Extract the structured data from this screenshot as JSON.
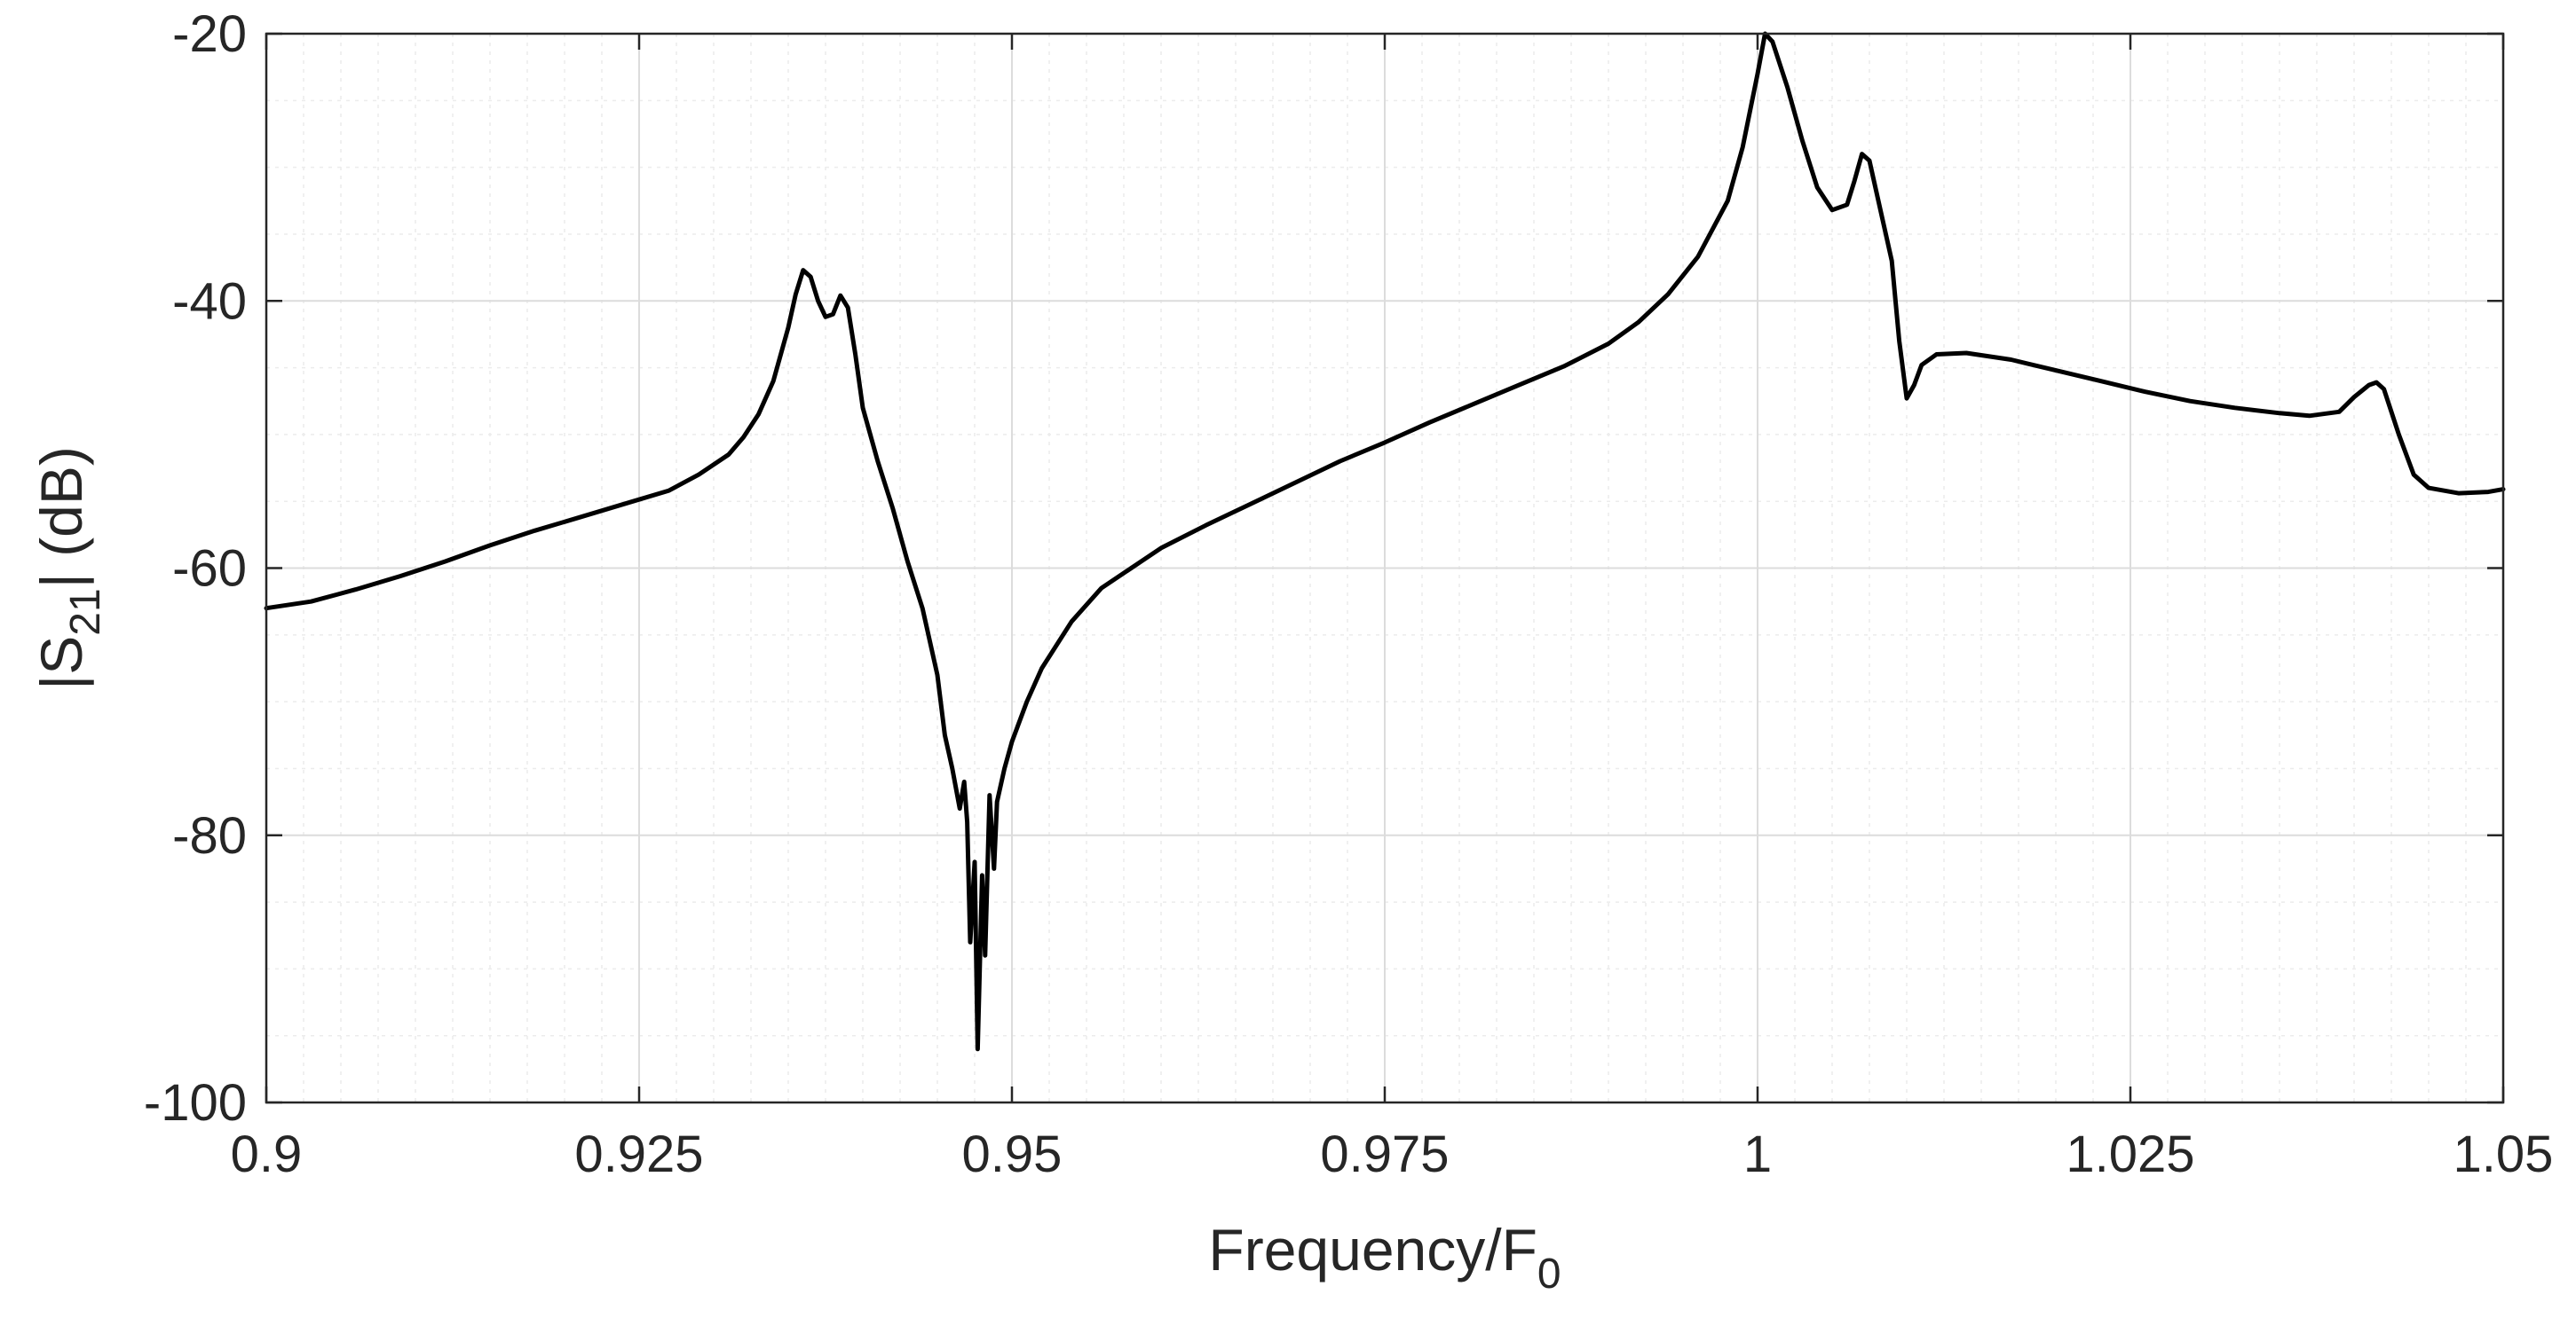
{
  "chart_data": {
    "type": "line",
    "title": "",
    "xlabel": {
      "main": "Frequency/F",
      "sub": "0"
    },
    "ylabel": {
      "prefix": "|S",
      "sub": "21",
      "suffix": "| (dB)"
    },
    "xlim": [
      0.9,
      1.05
    ],
    "ylim": [
      -100,
      -20
    ],
    "x_ticks": [
      0.9,
      0.925,
      0.95,
      0.975,
      1.0,
      1.025,
      1.05
    ],
    "x_tick_labels": [
      "0.9",
      "0.925",
      "0.95",
      "0.975",
      "1",
      "1.025",
      "1.05"
    ],
    "y_ticks": [
      -100,
      -80,
      -60,
      -40,
      -20
    ],
    "y_tick_labels": [
      "-100",
      "-80",
      "-60",
      "-40",
      "-20"
    ],
    "x_minor_step": 0.0025,
    "y_minor_step": 5,
    "grid": true,
    "minor_grid": true,
    "line_color": "#000000",
    "series": [
      {
        "points": [
          [
            0.9,
            -63.0
          ],
          [
            0.903,
            -62.5
          ],
          [
            0.906,
            -61.6
          ],
          [
            0.909,
            -60.6
          ],
          [
            0.912,
            -59.5
          ],
          [
            0.915,
            -58.3
          ],
          [
            0.918,
            -57.2
          ],
          [
            0.921,
            -56.2
          ],
          [
            0.924,
            -55.2
          ],
          [
            0.927,
            -54.2
          ],
          [
            0.929,
            -53.0
          ],
          [
            0.931,
            -51.5
          ],
          [
            0.932,
            -50.2
          ],
          [
            0.933,
            -48.5
          ],
          [
            0.934,
            -46.0
          ],
          [
            0.935,
            -42.0
          ],
          [
            0.9355,
            -39.5
          ],
          [
            0.936,
            -37.7
          ],
          [
            0.9365,
            -38.2
          ],
          [
            0.937,
            -40.0
          ],
          [
            0.9375,
            -41.2
          ],
          [
            0.938,
            -41.0
          ],
          [
            0.9385,
            -39.6
          ],
          [
            0.939,
            -40.5
          ],
          [
            0.9395,
            -44.0
          ],
          [
            0.94,
            -48.0
          ],
          [
            0.941,
            -52.0
          ],
          [
            0.942,
            -55.5
          ],
          [
            0.943,
            -59.5
          ],
          [
            0.944,
            -63.0
          ],
          [
            0.945,
            -68.0
          ],
          [
            0.9455,
            -72.5
          ],
          [
            0.946,
            -75.0
          ],
          [
            0.9465,
            -78.0
          ],
          [
            0.9468,
            -76.0
          ],
          [
            0.947,
            -79.0
          ],
          [
            0.9472,
            -88.0
          ],
          [
            0.9475,
            -82.0
          ],
          [
            0.9477,
            -96.0
          ],
          [
            0.948,
            -83.0
          ],
          [
            0.9482,
            -89.0
          ],
          [
            0.9485,
            -77.0
          ],
          [
            0.9488,
            -82.5
          ],
          [
            0.949,
            -77.5
          ],
          [
            0.9495,
            -75.0
          ],
          [
            0.95,
            -73.0
          ],
          [
            0.951,
            -70.0
          ],
          [
            0.952,
            -67.5
          ],
          [
            0.954,
            -64.0
          ],
          [
            0.956,
            -61.5
          ],
          [
            0.958,
            -60.0
          ],
          [
            0.96,
            -58.5
          ],
          [
            0.963,
            -56.8
          ],
          [
            0.966,
            -55.2
          ],
          [
            0.969,
            -53.6
          ],
          [
            0.972,
            -52.0
          ],
          [
            0.975,
            -50.6
          ],
          [
            0.978,
            -49.1
          ],
          [
            0.981,
            -47.7
          ],
          [
            0.984,
            -46.3
          ],
          [
            0.987,
            -44.9
          ],
          [
            0.99,
            -43.2
          ],
          [
            0.992,
            -41.6
          ],
          [
            0.994,
            -39.5
          ],
          [
            0.996,
            -36.7
          ],
          [
            0.998,
            -32.5
          ],
          [
            0.999,
            -28.5
          ],
          [
            1.0,
            -23.0
          ],
          [
            1.0005,
            -20.0
          ],
          [
            1.001,
            -20.6
          ],
          [
            1.002,
            -24.0
          ],
          [
            1.003,
            -28.0
          ],
          [
            1.004,
            -31.5
          ],
          [
            1.005,
            -33.2
          ],
          [
            1.006,
            -32.8
          ],
          [
            1.0065,
            -31.0
          ],
          [
            1.007,
            -29.0
          ],
          [
            1.0075,
            -29.5
          ],
          [
            1.008,
            -32.0
          ],
          [
            1.009,
            -37.0
          ],
          [
            1.0095,
            -43.0
          ],
          [
            1.01,
            -47.3
          ],
          [
            1.0105,
            -46.3
          ],
          [
            1.011,
            -44.8
          ],
          [
            1.012,
            -44.0
          ],
          [
            1.014,
            -43.9
          ],
          [
            1.017,
            -44.4
          ],
          [
            1.02,
            -45.2
          ],
          [
            1.023,
            -46.0
          ],
          [
            1.026,
            -46.8
          ],
          [
            1.029,
            -47.5
          ],
          [
            1.032,
            -48.0
          ],
          [
            1.035,
            -48.4
          ],
          [
            1.037,
            -48.6
          ],
          [
            1.039,
            -48.3
          ],
          [
            1.04,
            -47.2
          ],
          [
            1.041,
            -46.3
          ],
          [
            1.0415,
            -46.1
          ],
          [
            1.042,
            -46.6
          ],
          [
            1.043,
            -50.0
          ],
          [
            1.044,
            -53.0
          ],
          [
            1.045,
            -54.0
          ],
          [
            1.047,
            -54.4
          ],
          [
            1.049,
            -54.3
          ],
          [
            1.05,
            -54.1
          ]
        ]
      }
    ]
  }
}
